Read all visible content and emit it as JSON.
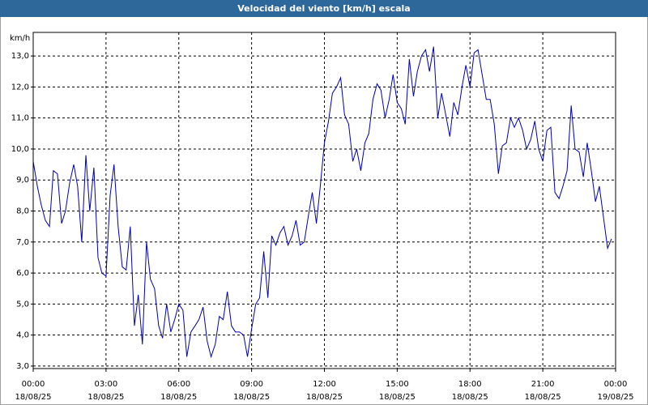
{
  "chart_data": {
    "type": "line",
    "title": "Velocidad del viento [km/h] escala",
    "y_unit": "km/h",
    "x": [
      0,
      0.17,
      0.33,
      0.5,
      0.67,
      0.83,
      1,
      1.17,
      1.33,
      1.5,
      1.67,
      1.83,
      2,
      2.17,
      2.33,
      2.5,
      2.67,
      2.83,
      3,
      3.17,
      3.33,
      3.5,
      3.67,
      3.83,
      4,
      4.17,
      4.33,
      4.5,
      4.67,
      4.83,
      5,
      5.17,
      5.33,
      5.5,
      5.67,
      5.83,
      6,
      6.17,
      6.33,
      6.5,
      6.67,
      6.83,
      7,
      7.17,
      7.33,
      7.5,
      7.67,
      7.83,
      8,
      8.17,
      8.33,
      8.5,
      8.67,
      8.83,
      9,
      9.17,
      9.33,
      9.5,
      9.67,
      9.83,
      10,
      10.17,
      10.33,
      10.5,
      10.67,
      10.83,
      11,
      11.17,
      11.33,
      11.5,
      11.67,
      11.83,
      12,
      12.17,
      12.33,
      12.5,
      12.67,
      12.83,
      13,
      13.17,
      13.33,
      13.5,
      13.67,
      13.83,
      14,
      14.17,
      14.33,
      14.5,
      14.67,
      14.83,
      15,
      15.17,
      15.33,
      15.5,
      15.67,
      15.83,
      16,
      16.17,
      16.33,
      16.5,
      16.67,
      16.83,
      17,
      17.17,
      17.33,
      17.5,
      17.67,
      17.83,
      18,
      18.17,
      18.33,
      18.5,
      18.67,
      18.83,
      19,
      19.17,
      19.33,
      19.5,
      19.67,
      19.83,
      20,
      20.17,
      20.33,
      20.5,
      20.67,
      20.83,
      21,
      21.17,
      21.33,
      21.5,
      21.67,
      21.83,
      22,
      22.17,
      22.33,
      22.5,
      22.67,
      22.83,
      23,
      23.17,
      23.33,
      23.5,
      23.67,
      23.83
    ],
    "series": [
      {
        "name": "Velocidad del viento",
        "color": "#0000b0",
        "values": [
          9.6,
          8.8,
          8.2,
          7.7,
          7.5,
          9.3,
          9.2,
          7.6,
          8.0,
          8.9,
          9.5,
          8.8,
          7.0,
          9.8,
          8.0,
          9.4,
          6.5,
          6.0,
          5.9,
          8.5,
          9.5,
          7.5,
          6.2,
          6.1,
          7.5,
          4.3,
          5.3,
          3.7,
          7.0,
          5.8,
          5.5,
          4.3,
          3.9,
          5.0,
          4.1,
          4.5,
          5.0,
          4.8,
          3.3,
          4.1,
          4.3,
          4.5,
          4.9,
          3.8,
          3.3,
          3.7,
          4.6,
          4.5,
          5.4,
          4.3,
          4.1,
          4.1,
          4.0,
          3.3,
          4.2,
          5.0,
          5.2,
          6.7,
          5.2,
          7.2,
          6.9,
          7.3,
          7.5,
          6.9,
          7.2,
          7.7,
          6.9,
          7.0,
          7.8,
          8.6,
          7.6,
          8.8,
          10.2,
          10.9,
          11.8,
          12.0,
          12.3,
          11.1,
          10.8,
          9.6,
          10.0,
          9.3,
          10.2,
          10.5,
          11.6,
          12.1,
          11.9,
          11.0,
          11.6,
          12.4,
          11.5,
          11.3,
          10.8,
          12.9,
          11.7,
          12.5,
          13.0,
          13.2,
          12.5,
          13.3,
          11.0,
          11.8,
          11.1,
          10.4,
          11.5,
          11.1,
          12.0,
          12.7,
          12.0,
          13.1,
          13.2,
          12.4,
          11.6,
          11.6,
          10.8,
          9.2,
          10.1,
          10.2,
          11.0,
          10.7,
          11.0,
          10.6,
          10.0,
          10.3,
          10.9,
          10.0,
          9.6,
          10.6,
          10.7,
          8.6,
          8.4,
          8.8,
          9.3,
          11.4,
          10.0,
          9.9,
          9.1,
          10.2,
          9.3,
          8.3,
          8.8,
          7.8,
          6.8,
          7.1
        ]
      }
    ],
    "xlim": [
      0,
      24
    ],
    "xticks": [
      {
        "value": 0,
        "label": "00:00"
      },
      {
        "value": 3,
        "label": "03:00"
      },
      {
        "value": 6,
        "label": "06:00"
      },
      {
        "value": 9,
        "label": "09:00"
      },
      {
        "value": 12,
        "label": "12:00"
      },
      {
        "value": 15,
        "label": "15:00"
      },
      {
        "value": 18,
        "label": "18:00"
      },
      {
        "value": 21,
        "label": "21:00"
      },
      {
        "value": 24,
        "label": "00:00"
      }
    ],
    "xtick_dates": [
      "18/08/25",
      "18/08/25",
      "18/08/25",
      "18/08/25",
      "18/08/25",
      "18/08/25",
      "18/08/25",
      "18/08/25",
      "19/08/25"
    ],
    "ylim": [
      2.92,
      13.76
    ],
    "yticks": [
      {
        "value": 3,
        "label": "3,0"
      },
      {
        "value": 4,
        "label": "4,0"
      },
      {
        "value": 5,
        "label": "5,0"
      },
      {
        "value": 6,
        "label": "6,0"
      },
      {
        "value": 7,
        "label": "7,0"
      },
      {
        "value": 8,
        "label": "8,0"
      },
      {
        "value": 9,
        "label": "9,0"
      },
      {
        "value": 10,
        "label": "10,0"
      },
      {
        "value": 11,
        "label": "11,0"
      },
      {
        "value": 12,
        "label": "12,0"
      },
      {
        "value": 13,
        "label": "13,0"
      }
    ],
    "grid": true
  }
}
